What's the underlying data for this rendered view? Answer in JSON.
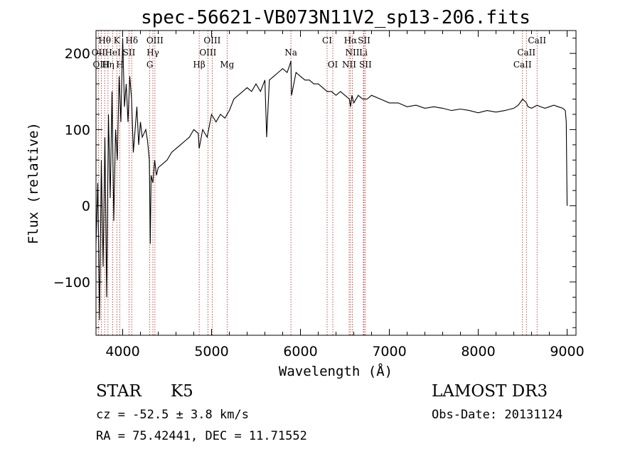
{
  "chart_data": {
    "type": "line",
    "title": "spec-56621-VB073N11V2_sp13-206.fits",
    "xlabel": "Wavelength (Å)",
    "ylabel": "Flux (relative)",
    "xlim": [
      3700,
      9100
    ],
    "ylim": [
      -170,
      230
    ],
    "xticks": [
      4000,
      5000,
      6000,
      7000,
      8000,
      9000
    ],
    "yticks": [
      -100,
      0,
      100,
      200
    ],
    "line_color": "#000000",
    "marker_color": "#b22222",
    "series": [
      {
        "name": "spectrum",
        "x": [
          3700,
          3720,
          3740,
          3760,
          3780,
          3800,
          3820,
          3840,
          3860,
          3880,
          3900,
          3920,
          3940,
          3960,
          3980,
          4000,
          4020,
          4040,
          4060,
          4080,
          4100,
          4120,
          4140,
          4160,
          4180,
          4200,
          4220,
          4240,
          4260,
          4280,
          4300,
          4310,
          4320,
          4340,
          4360,
          4380,
          4400,
          4450,
          4500,
          4550,
          4600,
          4650,
          4700,
          4750,
          4800,
          4850,
          4861,
          4900,
          4950,
          5000,
          5050,
          5100,
          5150,
          5200,
          5250,
          5300,
          5350,
          5400,
          5450,
          5500,
          5550,
          5600,
          5620,
          5650,
          5700,
          5750,
          5800,
          5850,
          5880,
          5893,
          5900,
          5950,
          6000,
          6050,
          6100,
          6150,
          6200,
          6250,
          6300,
          6350,
          6400,
          6450,
          6500,
          6550,
          6563,
          6580,
          6600,
          6650,
          6700,
          6750,
          6800,
          6900,
          7000,
          7100,
          7200,
          7300,
          7400,
          7500,
          7600,
          7700,
          7800,
          7900,
          8000,
          8100,
          8200,
          8300,
          8400,
          8450,
          8500,
          8542,
          8560,
          8600,
          8662,
          8700,
          8750,
          8800,
          8850,
          8900,
          8950,
          8980,
          8990,
          9000
        ],
        "y": [
          -50,
          30,
          -150,
          60,
          -80,
          90,
          -120,
          120,
          10,
          150,
          -20,
          100,
          60,
          170,
          110,
          220,
          130,
          160,
          110,
          170,
          140,
          70,
          100,
          130,
          80,
          110,
          90,
          95,
          100,
          85,
          60,
          -50,
          40,
          30,
          60,
          40,
          50,
          55,
          60,
          70,
          75,
          80,
          85,
          90,
          100,
          95,
          75,
          100,
          90,
          120,
          110,
          120,
          115,
          125,
          140,
          145,
          150,
          155,
          150,
          160,
          150,
          165,
          90,
          165,
          170,
          175,
          180,
          175,
          185,
          190,
          145,
          175,
          170,
          165,
          165,
          160,
          160,
          155,
          150,
          150,
          145,
          150,
          145,
          140,
          130,
          145,
          135,
          145,
          140,
          140,
          145,
          140,
          135,
          135,
          130,
          132,
          128,
          130,
          128,
          125,
          127,
          125,
          122,
          125,
          123,
          125,
          128,
          132,
          140,
          135,
          130,
          128,
          132,
          130,
          128,
          130,
          132,
          130,
          128,
          125,
          110,
          0
        ]
      }
    ],
    "line_markers": [
      {
        "label": "Hθ",
        "x": 3798,
        "row": 1
      },
      {
        "label": "K",
        "x": 3934,
        "row": 1
      },
      {
        "label": "Hδ",
        "x": 4102,
        "row": 1
      },
      {
        "label": "OIII",
        "x": 4363,
        "row": 1
      },
      {
        "label": "OIII",
        "x": 5007,
        "row": 1
      },
      {
        "label": "CI",
        "x": 6300,
        "row": 1
      },
      {
        "label": "Hα",
        "x": 6563,
        "row": 1
      },
      {
        "label": "SII",
        "x": 6716,
        "row": 1
      },
      {
        "label": "CaII",
        "x": 8662,
        "row": 1
      },
      {
        "label": "OII",
        "x": 3727,
        "row": 2
      },
      {
        "label": "HeI",
        "x": 3889,
        "row": 2
      },
      {
        "label": "SII",
        "x": 4072,
        "row": 2
      },
      {
        "label": "Hγ",
        "x": 4340,
        "row": 2
      },
      {
        "label": "OIII",
        "x": 4959,
        "row": 2
      },
      {
        "label": "Na",
        "x": 5893,
        "row": 2
      },
      {
        "label": "NII",
        "x": 6584,
        "row": 2
      },
      {
        "label": "Li",
        "x": 6708,
        "row": 2
      },
      {
        "label": "CaII",
        "x": 8542,
        "row": 2
      },
      {
        "label": "OIII",
        "x": 3760,
        "row": 3
      },
      {
        "label": "Hη",
        "x": 3835,
        "row": 3
      },
      {
        "label": "H",
        "x": 3969,
        "row": 3
      },
      {
        "label": "G",
        "x": 4305,
        "row": 3
      },
      {
        "label": "Hβ",
        "x": 4861,
        "row": 3
      },
      {
        "label": "Mg",
        "x": 5175,
        "row": 3
      },
      {
        "label": "OI",
        "x": 6364,
        "row": 3
      },
      {
        "label": "NII",
        "x": 6548,
        "row": 3
      },
      {
        "label": "SII",
        "x": 6731,
        "row": 3
      },
      {
        "label": "CaII",
        "x": 8498,
        "row": 3
      }
    ],
    "line_positions": [
      3727,
      3760,
      3798,
      3835,
      3889,
      3934,
      3969,
      4072,
      4102,
      4305,
      4340,
      4363,
      4861,
      4959,
      5007,
      5175,
      5893,
      6300,
      6364,
      6548,
      6563,
      6584,
      6708,
      6716,
      6731,
      8498,
      8542,
      8662
    ]
  },
  "info": {
    "object_class": "STAR",
    "subclass": "K5",
    "survey": "LAMOST DR3",
    "redshift": "cz = -52.5 ± 3.8 km/s",
    "obs_date": "Obs-Date: 20131124",
    "coords": "RA =  75.42441, DEC =  11.71552"
  }
}
